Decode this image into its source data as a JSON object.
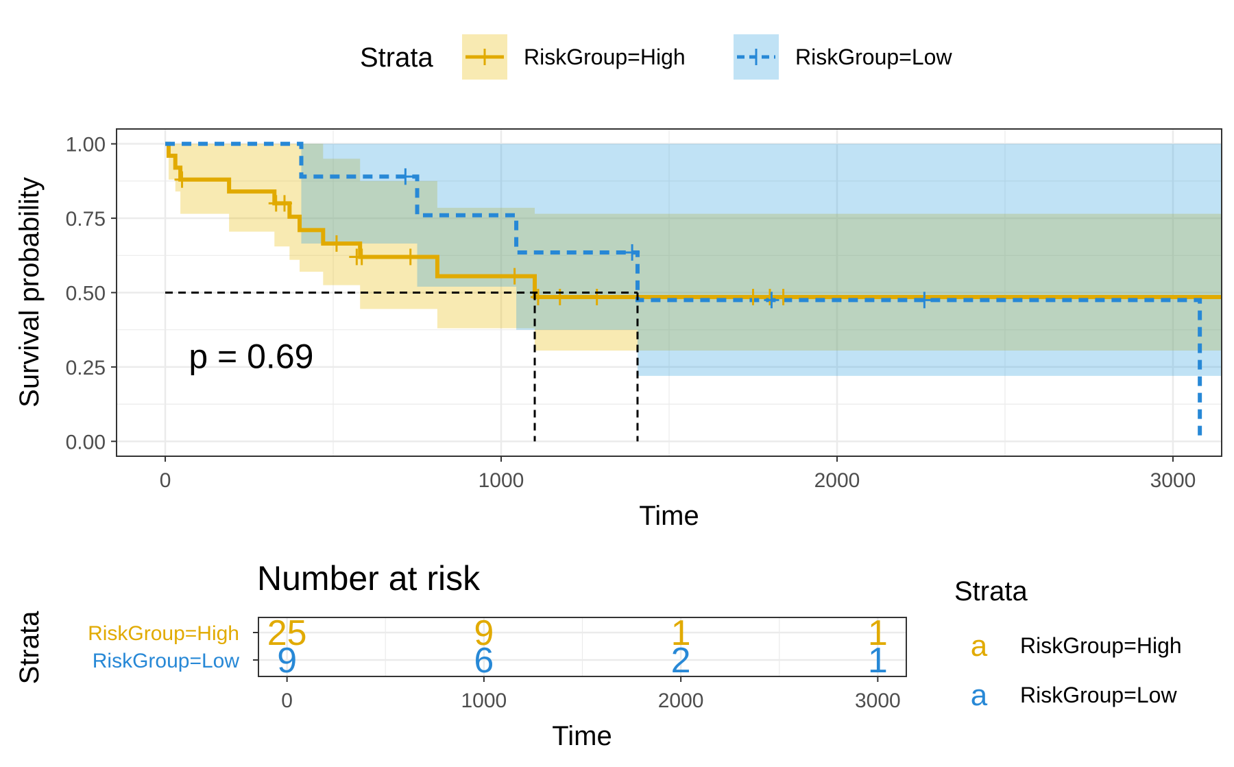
{
  "colors": {
    "high": "#E7B800",
    "low": "#2E9FDF",
    "high_line": "#E1AA00",
    "low_line": "#2788D6",
    "ref_line": "#000000",
    "grid": "#EBEBEB",
    "axis_text": "#4D4D4D"
  },
  "legend": {
    "title": "Strata",
    "items": [
      {
        "label": "RiskGroup=High",
        "key": "high"
      },
      {
        "label": "RiskGroup=Low",
        "key": "low"
      }
    ]
  },
  "chart_data": [
    {
      "type": "line",
      "subtype": "kaplan-meier",
      "xlabel": "Time",
      "ylabel": "Survival probability",
      "xlim": [
        -145,
        3145
      ],
      "ylim": [
        -0.05,
        1.05
      ],
      "x_ticks": [
        0,
        1000,
        2000,
        3000
      ],
      "x_tick_labels": [
        "0",
        "1000",
        "2000",
        "3000"
      ],
      "y_ticks": [
        0,
        0.25,
        0.5,
        0.75,
        1
      ],
      "y_tick_labels": [
        "0.00",
        "0.25",
        "0.50",
        "0.75",
        "1.00"
      ],
      "grid": true,
      "legend_position": "top",
      "annotation": "p = 0.69",
      "annotation_at": {
        "x": 70,
        "y": 0.2
      },
      "median_lines": {
        "y": 0.5,
        "x": [
          1100,
          1406
        ]
      },
      "series": [
        {
          "name": "RiskGroup=High",
          "key": "high",
          "steps": [
            [
              0,
              1.0
            ],
            [
              10,
              0.96
            ],
            [
              30,
              0.92
            ],
            [
              45,
              0.88
            ],
            [
              190,
              0.84
            ],
            [
              325,
              0.8
            ],
            [
              370,
              0.755
            ],
            [
              400,
              0.71
            ],
            [
              470,
              0.665
            ],
            [
              580,
              0.62
            ],
            [
              810,
              0.555
            ],
            [
              1100,
              0.485
            ],
            [
              3145,
              0.485
            ]
          ],
          "ci": [
            [
              0,
              1,
              1
            ],
            [
              10,
              1,
              0.88
            ],
            [
              30,
              1,
              0.84
            ],
            [
              45,
              1,
              0.765
            ],
            [
              190,
              1,
              0.705
            ],
            [
              325,
              1,
              0.655
            ],
            [
              370,
              1,
              0.61
            ],
            [
              400,
              1,
              0.57
            ],
            [
              470,
              0.95,
              0.525
            ],
            [
              580,
              0.875,
              0.445
            ],
            [
              810,
              0.785,
              0.38
            ],
            [
              1100,
              0.765,
              0.305
            ],
            [
              3080,
              0.765,
              0.305
            ],
            [
              3145,
              0.765,
              0.305
            ]
          ],
          "censors": [
            [
              50,
              0.88
            ],
            [
              330,
              0.8
            ],
            [
              355,
              0.8
            ],
            [
              510,
              0.665
            ],
            [
              570,
              0.62
            ],
            [
              585,
              0.62
            ],
            [
              730,
              0.62
            ],
            [
              1040,
              0.555
            ],
            [
              1110,
              0.485
            ],
            [
              1175,
              0.485
            ],
            [
              1285,
              0.485
            ],
            [
              1750,
              0.485
            ],
            [
              1800,
              0.485
            ],
            [
              1840,
              0.485
            ]
          ]
        },
        {
          "name": "RiskGroup=Low",
          "key": "low",
          "steps": [
            [
              0,
              1.0
            ],
            [
              405,
              0.89
            ],
            [
              750,
              0.76
            ],
            [
              1045,
              0.635
            ],
            [
              1406,
              0.475
            ],
            [
              3080,
              0.475
            ],
            [
              3080,
              0.0
            ]
          ],
          "ci": [
            [
              0,
              1,
              1
            ],
            [
              405,
              1,
              0.665
            ],
            [
              750,
              1,
              0.52
            ],
            [
              1045,
              1,
              0.375
            ],
            [
              1406,
              1,
              0.22
            ],
            [
              3080,
              1,
              0.22
            ]
          ],
          "censors": [
            [
              715,
              0.89
            ],
            [
              1390,
              0.635
            ],
            [
              1805,
              0.475
            ],
            [
              2260,
              0.475
            ]
          ]
        }
      ]
    },
    {
      "type": "table",
      "title": "Number at risk",
      "ylabel": "Strata",
      "xlabel": "Time",
      "xlim": [
        -145,
        3145
      ],
      "x_ticks": [
        0,
        1000,
        2000,
        3000
      ],
      "x_tick_labels": [
        "0",
        "1000",
        "2000",
        "3000"
      ],
      "rows": [
        {
          "name": "RiskGroup=High",
          "key": "high",
          "values": [
            "25",
            "9",
            "1",
            "1"
          ]
        },
        {
          "name": "RiskGroup=Low",
          "key": "low",
          "values": [
            "9",
            "6",
            "2",
            "1"
          ]
        }
      ],
      "legend_title": "Strata",
      "legend_glyph": "a"
    }
  ]
}
